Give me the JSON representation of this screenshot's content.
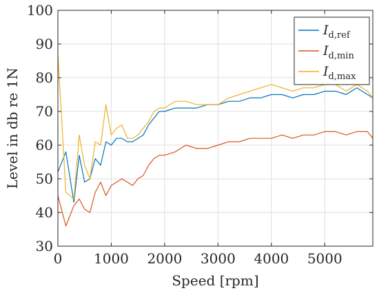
{
  "chart_data": {
    "type": "line",
    "xlabel": "Speed [rpm]",
    "ylabel": "Level in db re 1N",
    "xlim": [
      0,
      5900
    ],
    "ylim": [
      30,
      100
    ],
    "xticks": [
      0,
      1000,
      2000,
      3000,
      4000,
      5000
    ],
    "yticks": [
      30,
      40,
      50,
      60,
      70,
      80,
      90,
      100
    ],
    "grid": true,
    "legend_position": "top-right",
    "x": [
      0,
      150,
      300,
      400,
      500,
      600,
      700,
      800,
      900,
      1000,
      1100,
      1200,
      1300,
      1400,
      1500,
      1600,
      1700,
      1800,
      1900,
      2000,
      2200,
      2400,
      2600,
      2800,
      3000,
      3200,
      3400,
      3600,
      3800,
      4000,
      4200,
      4400,
      4600,
      4800,
      5000,
      5200,
      5400,
      5600,
      5800,
      5900
    ],
    "series": [
      {
        "name": "I_{d,ref}",
        "label_main": "I",
        "label_sub": "d,ref",
        "color": "#0072BD",
        "values": [
          52,
          58,
          43,
          57,
          49,
          50,
          56,
          54,
          61,
          60,
          62,
          62,
          61,
          61,
          62,
          63,
          66,
          68,
          70,
          70,
          71,
          71,
          71,
          72,
          72,
          73,
          73,
          74,
          74,
          75,
          75,
          74,
          75,
          75,
          76,
          76,
          75,
          77,
          75,
          74
        ]
      },
      {
        "name": "I_{d,min}",
        "label_main": "I",
        "label_sub": "d,min",
        "color": "#D95319",
        "values": [
          45,
          36,
          42,
          44,
          41,
          40,
          46,
          49,
          45,
          48,
          49,
          50,
          49,
          48,
          50,
          51,
          54,
          56,
          57,
          57,
          58,
          60,
          59,
          59,
          60,
          61,
          61,
          62,
          62,
          62,
          63,
          62,
          63,
          63,
          64,
          64,
          63,
          64,
          64,
          62
        ]
      },
      {
        "name": "I_{d,max}",
        "label_main": "I",
        "label_sub": "d,max",
        "color": "#EDB120",
        "values": [
          87,
          46,
          44,
          63,
          54,
          50,
          61,
          60,
          72,
          63,
          65,
          66,
          62,
          62,
          63,
          65,
          67,
          70,
          71,
          71,
          73,
          73,
          72,
          72,
          72,
          74,
          75,
          76,
          77,
          78,
          77,
          76,
          77,
          77,
          78,
          78,
          76,
          78,
          76,
          74
        ]
      }
    ]
  }
}
